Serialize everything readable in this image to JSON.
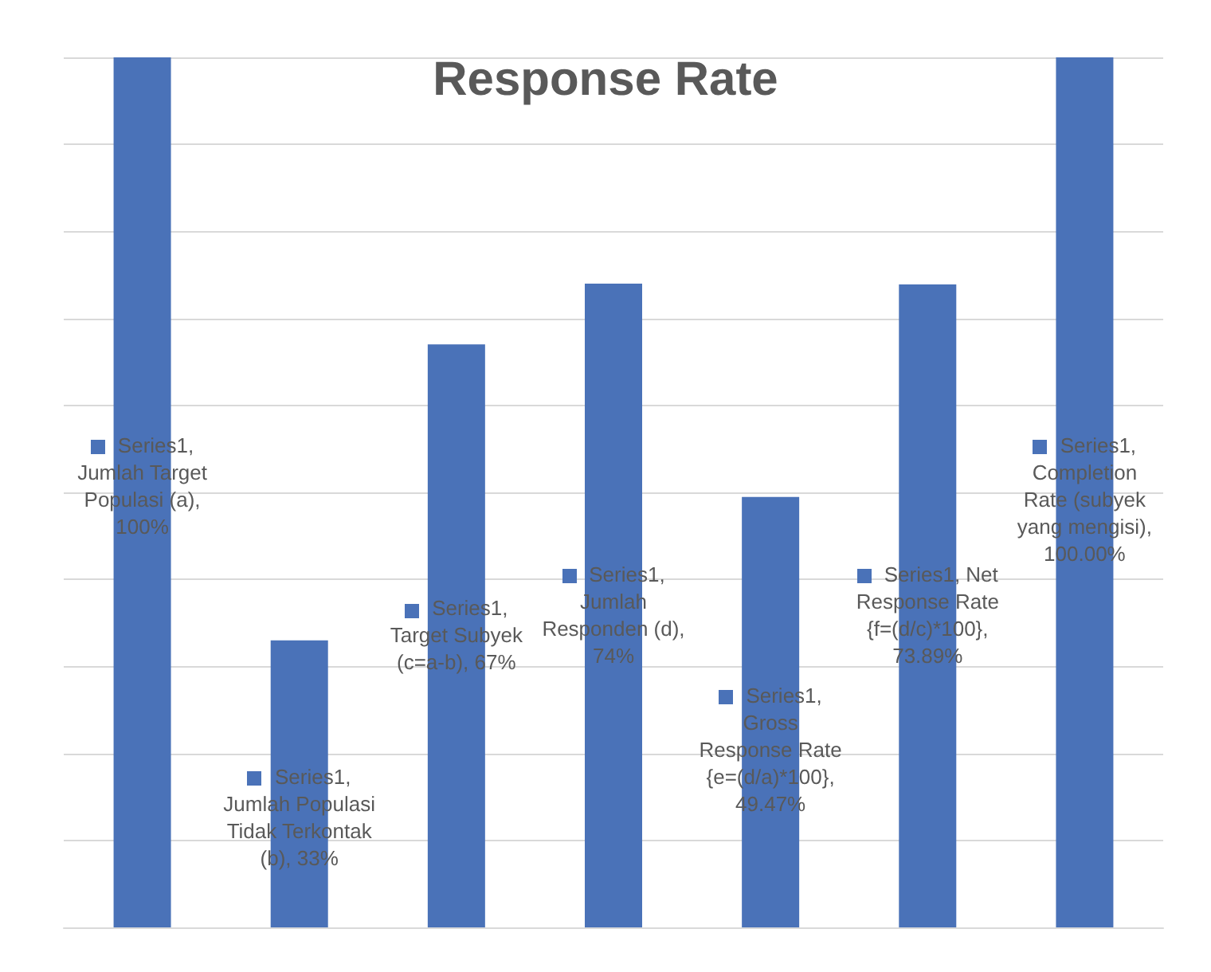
{
  "chart_data": {
    "type": "bar",
    "title": "Response Rate",
    "categories": [
      null,
      null,
      null,
      null,
      null,
      null,
      null
    ],
    "series": [
      {
        "color": "#4a72b8",
        "values": [
          100,
          33,
          67,
          74,
          49.47,
          73.89,
          100
        ],
        "value_labels": [
          "Series1, Jumlah Target Populasi (a), 100%",
          "Series1, Jumlah Populasi Tidak Terkontak (b), 33%",
          "Series1, Target Subyek (c=a-b), 67%",
          "Series1, Jumlah Responden (d), 74%",
          "Series1, Gross Response Rate {e=(d/a)*100}, 49.47%",
          "Series1, Net Response Rate {f=(d/c)*100}, 73.89%",
          "Series1, Completion Rate (subyek yang mengisi), 100.00%"
        ]
      }
    ],
    "ylim": [
      0,
      100
    ],
    "yticks": [
      {
        "value": 0,
        "label": null
      },
      {
        "value": 10,
        "label": null
      },
      {
        "value": 20,
        "label": null
      },
      {
        "value": 30,
        "label": null
      },
      {
        "value": 40,
        "label": null
      },
      {
        "value": 50,
        "label": null
      },
      {
        "value": 60,
        "label": null
      },
      {
        "value": 70,
        "label": null
      },
      {
        "value": 80,
        "label": null
      },
      {
        "value": 90,
        "label": null
      },
      {
        "value": 100,
        "label": null
      }
    ],
    "grid": "y"
  }
}
